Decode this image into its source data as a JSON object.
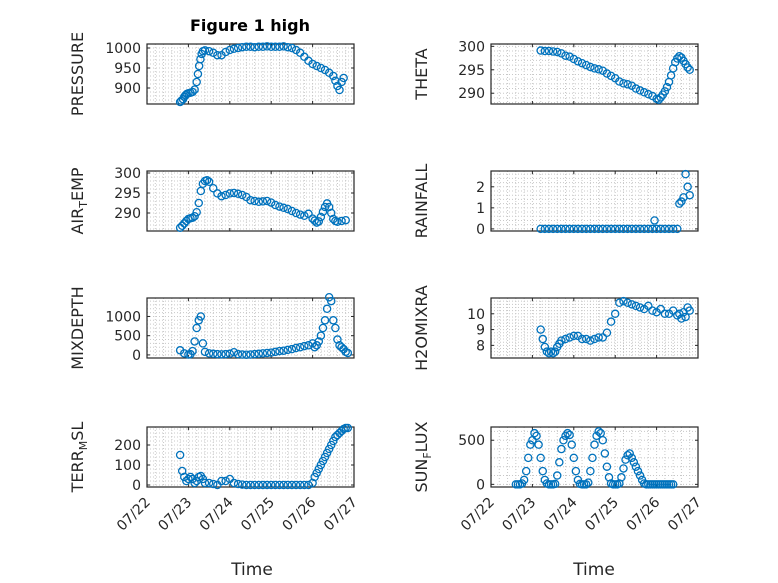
{
  "figure": {
    "title": "Figure 1 high",
    "xlabel": "Time"
  },
  "chart_data": [
    {
      "type": "scatter",
      "ylabel": "PRESSURE",
      "sub": "",
      "ylim": [
        860,
        1010
      ],
      "yticks": [
        900,
        950,
        1000
      ],
      "xlim": [
        0,
        5
      ],
      "xticks": [
        0,
        1,
        2,
        3,
        4,
        5
      ],
      "xticklabels": [],
      "x": [
        0.8,
        0.83,
        0.87,
        0.9,
        0.93,
        0.96,
        1.0,
        1.05,
        1.1,
        1.15,
        1.2,
        1.23,
        1.26,
        1.29,
        1.32,
        1.35,
        1.4,
        1.5,
        1.6,
        1.7,
        1.8,
        1.9,
        2.0,
        2.1,
        2.2,
        2.3,
        2.4,
        2.5,
        2.6,
        2.7,
        2.8,
        2.9,
        3.0,
        3.1,
        3.2,
        3.3,
        3.4,
        3.5,
        3.6,
        3.7,
        3.8,
        3.9,
        4.0,
        4.1,
        4.2,
        4.3,
        4.4,
        4.5,
        4.55,
        4.6,
        4.65,
        4.7,
        4.75
      ],
      "y": [
        865,
        868,
        872,
        878,
        882,
        885,
        887,
        888,
        890,
        896,
        915,
        935,
        955,
        972,
        985,
        992,
        994,
        992,
        988,
        982,
        982,
        990,
        995,
        998,
        1000,
        1002,
        1003,
        1003,
        1002,
        1003,
        1003,
        1004,
        1003,
        1003,
        1003,
        1004,
        1002,
        1000,
        995,
        988,
        978,
        968,
        960,
        955,
        950,
        945,
        938,
        930,
        918,
        905,
        895,
        915,
        925
      ]
    },
    {
      "type": "scatter",
      "ylabel": "THETA",
      "sub": "",
      "ylim": [
        287.7,
        300.5
      ],
      "yticks": [
        290,
        295,
        300
      ],
      "xlim": [
        0,
        5
      ],
      "xticks": [
        0,
        1,
        2,
        3,
        4,
        5
      ],
      "xticklabels": [],
      "x": [
        1.2,
        1.3,
        1.4,
        1.5,
        1.6,
        1.7,
        1.8,
        1.9,
        2.0,
        2.1,
        2.2,
        2.3,
        2.4,
        2.5,
        2.6,
        2.7,
        2.8,
        2.9,
        3.0,
        3.1,
        3.2,
        3.3,
        3.4,
        3.5,
        3.6,
        3.7,
        3.8,
        3.9,
        4.0,
        4.05,
        4.1,
        4.15,
        4.2,
        4.25,
        4.3,
        4.35,
        4.4,
        4.45,
        4.5,
        4.55,
        4.6,
        4.65,
        4.7,
        4.75,
        4.8
      ],
      "y": [
        299.1,
        299.0,
        299.0,
        298.9,
        298.8,
        298.5,
        298.0,
        297.8,
        297.3,
        296.8,
        296.4,
        296.0,
        295.6,
        295.3,
        295.1,
        294.8,
        294.2,
        293.7,
        293.2,
        292.5,
        292.1,
        291.9,
        291.6,
        291.0,
        290.6,
        290.2,
        289.8,
        289.4,
        288.8,
        288.6,
        289.1,
        289.7,
        290.4,
        291.3,
        292.4,
        293.8,
        295.3,
        296.6,
        297.4,
        297.9,
        297.6,
        296.9,
        296.2,
        295.5,
        295.0
      ]
    },
    {
      "type": "scatter",
      "ylabel": "AIR",
      "sub": "T",
      "ylabel_suffix": "EMP",
      "ylim": [
        285.5,
        300.5
      ],
      "yticks": [
        290,
        295,
        300
      ],
      "xlim": [
        0,
        5
      ],
      "xticks": [
        0,
        1,
        2,
        3,
        4,
        5
      ],
      "xticklabels": [],
      "x": [
        0.8,
        0.85,
        0.9,
        0.95,
        1.0,
        1.05,
        1.1,
        1.15,
        1.2,
        1.25,
        1.3,
        1.35,
        1.4,
        1.45,
        1.5,
        1.6,
        1.7,
        1.8,
        1.9,
        2.0,
        2.1,
        2.2,
        2.3,
        2.4,
        2.5,
        2.6,
        2.7,
        2.8,
        2.9,
        3.0,
        3.1,
        3.2,
        3.3,
        3.4,
        3.5,
        3.6,
        3.7,
        3.8,
        3.9,
        4.0,
        4.05,
        4.1,
        4.15,
        4.2,
        4.25,
        4.3,
        4.35,
        4.4,
        4.45,
        4.5,
        4.55,
        4.6,
        4.7,
        4.8
      ],
      "y": [
        286.3,
        286.8,
        287.4,
        288.0,
        288.5,
        288.7,
        288.8,
        289.2,
        290.2,
        292.5,
        295.5,
        297.3,
        298.0,
        298.2,
        297.8,
        296.2,
        294.9,
        294.2,
        294.5,
        294.9,
        295.0,
        294.8,
        294.5,
        294.0,
        293.2,
        293.0,
        292.8,
        292.9,
        293.0,
        292.6,
        292.0,
        291.6,
        291.3,
        291.0,
        290.5,
        290.0,
        289.6,
        289.3,
        289.8,
        288.6,
        288.1,
        287.6,
        287.9,
        289.0,
        290.3,
        291.5,
        292.4,
        291.5,
        290.0,
        288.5,
        288.0,
        287.8,
        288.0,
        288.2
      ]
    },
    {
      "type": "scatter",
      "ylabel": "RAINFALL",
      "sub": "",
      "ylim": [
        -0.1,
        2.75
      ],
      "yticks": [
        0,
        1,
        2
      ],
      "xlim": [
        0,
        5
      ],
      "xticks": [
        0,
        1,
        2,
        3,
        4,
        5
      ],
      "xticklabels": [],
      "x": [
        1.2,
        1.3,
        1.4,
        1.5,
        1.6,
        1.7,
        1.8,
        1.9,
        2.0,
        2.1,
        2.2,
        2.3,
        2.4,
        2.5,
        2.6,
        2.7,
        2.8,
        2.9,
        3.0,
        3.1,
        3.2,
        3.3,
        3.4,
        3.5,
        3.6,
        3.7,
        3.8,
        3.9,
        3.95,
        4.0,
        4.1,
        4.2,
        4.3,
        4.4,
        4.5,
        4.55,
        4.6,
        4.65,
        4.7,
        4.75,
        4.8
      ],
      "y": [
        0,
        0,
        0,
        0,
        0,
        0,
        0,
        0,
        0,
        0,
        0,
        0,
        0,
        0,
        0,
        0,
        0,
        0,
        0,
        0,
        0,
        0,
        0,
        0,
        0,
        0,
        0,
        0,
        0.4,
        0,
        0,
        0,
        0,
        0,
        0,
        1.2,
        1.3,
        1.5,
        2.6,
        2.0,
        1.6
      ]
    },
    {
      "type": "scatter",
      "ylabel": "MIXDEPTH",
      "sub": "",
      "ylim": [
        -80,
        1480
      ],
      "yticks": [
        0,
        500,
        1000
      ],
      "xlim": [
        0,
        5
      ],
      "xticks": [
        0,
        1,
        2,
        3,
        4,
        5
      ],
      "xticklabels": [],
      "x": [
        0.8,
        0.9,
        1.0,
        1.05,
        1.1,
        1.15,
        1.2,
        1.25,
        1.3,
        1.35,
        1.4,
        1.5,
        1.6,
        1.7,
        1.8,
        1.9,
        2.0,
        2.1,
        2.2,
        2.3,
        2.4,
        2.5,
        2.6,
        2.7,
        2.8,
        2.9,
        3.0,
        3.1,
        3.2,
        3.3,
        3.4,
        3.5,
        3.6,
        3.7,
        3.8,
        3.9,
        4.0,
        4.05,
        4.1,
        4.15,
        4.2,
        4.25,
        4.3,
        4.35,
        4.4,
        4.45,
        4.5,
        4.55,
        4.6,
        4.65,
        4.7,
        4.75,
        4.8,
        4.85
      ],
      "y": [
        120,
        40,
        10,
        20,
        100,
        350,
        700,
        900,
        1000,
        300,
        80,
        40,
        30,
        20,
        15,
        20,
        30,
        70,
        20,
        10,
        5,
        10,
        20,
        30,
        40,
        50,
        60,
        80,
        100,
        110,
        130,
        150,
        180,
        200,
        230,
        250,
        300,
        200,
        250,
        350,
        500,
        700,
        900,
        1200,
        1500,
        1400,
        900,
        700,
        400,
        250,
        200,
        150,
        80,
        50
      ]
    },
    {
      "type": "scatter",
      "ylabel": "H2OMIXRA",
      "sub": "",
      "ylim": [
        7.2,
        11.0
      ],
      "yticks": [
        8,
        9,
        10
      ],
      "xlim": [
        0,
        5
      ],
      "xticks": [
        0,
        1,
        2,
        3,
        4,
        5
      ],
      "xticklabels": [],
      "x": [
        1.2,
        1.25,
        1.3,
        1.35,
        1.4,
        1.45,
        1.5,
        1.55,
        1.6,
        1.65,
        1.7,
        1.8,
        1.9,
        2.0,
        2.1,
        2.2,
        2.3,
        2.4,
        2.5,
        2.6,
        2.7,
        2.8,
        2.9,
        3.0,
        3.1,
        3.2,
        3.3,
        3.4,
        3.5,
        3.6,
        3.7,
        3.8,
        3.9,
        4.0,
        4.1,
        4.2,
        4.3,
        4.4,
        4.5,
        4.55,
        4.6,
        4.65,
        4.7,
        4.75,
        4.8
      ],
      "y": [
        9.0,
        8.4,
        7.9,
        7.6,
        7.5,
        7.6,
        7.5,
        7.6,
        7.9,
        8.1,
        8.3,
        8.4,
        8.5,
        8.6,
        8.6,
        8.4,
        8.4,
        8.3,
        8.4,
        8.5,
        8.5,
        8.8,
        9.5,
        10.0,
        10.7,
        10.8,
        10.7,
        10.6,
        10.5,
        10.4,
        10.3,
        10.5,
        10.2,
        10.1,
        10.3,
        10.0,
        10.0,
        10.2,
        9.9,
        10.0,
        9.7,
        10.1,
        9.8,
        10.4,
        10.2
      ]
    },
    {
      "type": "scatter",
      "ylabel": "TERR",
      "sub": "M",
      "ylabel_suffix": "SL",
      "ylim": [
        -10,
        290
      ],
      "yticks": [
        0,
        100,
        200
      ],
      "xlim": [
        0,
        5
      ],
      "xticks": [
        0,
        1,
        2,
        3,
        4,
        5
      ],
      "xticklabels": [
        "07/22",
        "07/23",
        "07/24",
        "07/25",
        "07/26",
        "07/27"
      ],
      "x": [
        0.8,
        0.85,
        0.9,
        0.95,
        1.0,
        1.05,
        1.1,
        1.15,
        1.2,
        1.25,
        1.3,
        1.35,
        1.4,
        1.5,
        1.6,
        1.7,
        1.8,
        1.9,
        2.0,
        2.1,
        2.2,
        2.3,
        2.4,
        2.5,
        2.6,
        2.7,
        2.8,
        2.9,
        3.0,
        3.1,
        3.2,
        3.3,
        3.4,
        3.5,
        3.6,
        3.7,
        3.8,
        3.9,
        4.0,
        4.05,
        4.1,
        4.15,
        4.2,
        4.25,
        4.3,
        4.35,
        4.4,
        4.45,
        4.5,
        4.55,
        4.6,
        4.65,
        4.7,
        4.75,
        4.8,
        4.85
      ],
      "y": [
        150,
        70,
        40,
        20,
        30,
        40,
        30,
        10,
        20,
        40,
        45,
        30,
        10,
        10,
        5,
        0,
        20,
        20,
        30,
        10,
        5,
        2,
        0,
        0,
        0,
        0,
        0,
        0,
        0,
        0,
        0,
        0,
        0,
        0,
        0,
        0,
        0,
        0,
        10,
        40,
        60,
        80,
        100,
        120,
        140,
        160,
        180,
        200,
        220,
        240,
        250,
        260,
        270,
        280,
        285,
        285
      ]
    },
    {
      "type": "scatter",
      "ylabel": "SUN",
      "sub": "F",
      "ylabel_suffix": "LUX",
      "ylim": [
        -30,
        650
      ],
      "yticks": [
        0,
        500
      ],
      "xlim": [
        0,
        5
      ],
      "xticks": [
        0,
        1,
        2,
        3,
        4,
        5
      ],
      "xticklabels": [
        "07/22",
        "07/23",
        "07/24",
        "07/25",
        "07/26",
        "07/27"
      ],
      "x": [
        0.6,
        0.65,
        0.7,
        0.75,
        0.8,
        0.85,
        0.9,
        0.95,
        1.0,
        1.05,
        1.1,
        1.15,
        1.2,
        1.25,
        1.3,
        1.35,
        1.4,
        1.45,
        1.5,
        1.55,
        1.6,
        1.65,
        1.7,
        1.75,
        1.8,
        1.85,
        1.9,
        1.95,
        2.0,
        2.05,
        2.1,
        2.15,
        2.2,
        2.25,
        2.3,
        2.35,
        2.4,
        2.45,
        2.5,
        2.55,
        2.6,
        2.65,
        2.7,
        2.75,
        2.8,
        2.85,
        2.9,
        2.95,
        3.0,
        3.05,
        3.1,
        3.15,
        3.2,
        3.25,
        3.3,
        3.35,
        3.4,
        3.45,
        3.5,
        3.55,
        3.6,
        3.65,
        3.7,
        3.75,
        3.8,
        3.85,
        3.9,
        3.95,
        4.0,
        4.05,
        4.1,
        4.15,
        4.2,
        4.25,
        4.3,
        4.35,
        4.4
      ],
      "y": [
        0,
        0,
        0,
        10,
        50,
        150,
        300,
        450,
        500,
        580,
        550,
        450,
        300,
        150,
        50,
        10,
        0,
        0,
        0,
        5,
        100,
        250,
        400,
        500,
        550,
        580,
        560,
        450,
        300,
        150,
        50,
        5,
        0,
        0,
        0,
        20,
        150,
        300,
        450,
        550,
        600,
        580,
        500,
        350,
        200,
        80,
        10,
        0,
        0,
        0,
        10,
        80,
        180,
        280,
        330,
        350,
        300,
        250,
        200,
        150,
        100,
        50,
        10,
        0,
        0,
        0,
        0,
        0,
        0,
        0,
        0,
        0,
        0,
        0,
        0,
        0,
        0
      ]
    }
  ]
}
